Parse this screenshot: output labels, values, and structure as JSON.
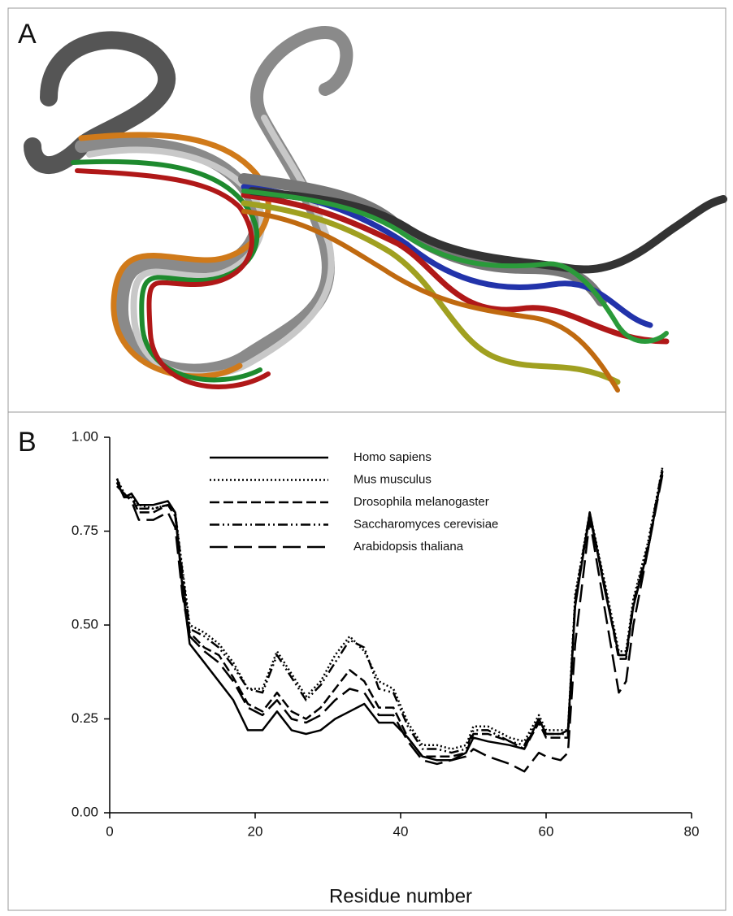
{
  "panel_a": {
    "label": "A"
  },
  "chart_data": {
    "type": "line",
    "panel_label": "B",
    "x_label": "Residue number",
    "x": [
      1,
      2,
      3,
      4,
      6,
      8,
      9,
      10,
      11,
      13,
      15,
      17,
      19,
      21,
      23,
      25,
      27,
      29,
      31,
      33,
      35,
      37,
      39,
      41,
      43,
      45,
      47,
      49,
      50,
      52,
      55,
      57,
      59,
      60,
      62,
      63,
      64,
      66,
      68,
      70,
      71,
      72,
      74,
      76
    ],
    "series": [
      {
        "name": "Homo sapiens",
        "color": "#000000",
        "dash": "solid",
        "values": [
          0.88,
          0.84,
          0.85,
          0.82,
          0.82,
          0.83,
          0.8,
          0.6,
          0.45,
          0.4,
          0.35,
          0.3,
          0.22,
          0.22,
          0.27,
          0.22,
          0.21,
          0.22,
          0.25,
          0.27,
          0.29,
          0.24,
          0.24,
          0.2,
          0.15,
          0.14,
          0.14,
          0.16,
          0.2,
          0.19,
          0.18,
          0.17,
          0.25,
          0.21,
          0.21,
          0.22,
          0.55,
          0.8,
          0.6,
          0.42,
          0.42,
          0.55,
          0.7,
          0.91
        ]
      },
      {
        "name": "Mus musculus",
        "color": "#000000",
        "dash": "dotted",
        "values": [
          0.89,
          0.85,
          0.84,
          0.82,
          0.81,
          0.82,
          0.8,
          0.65,
          0.5,
          0.48,
          0.45,
          0.4,
          0.33,
          0.33,
          0.43,
          0.37,
          0.31,
          0.35,
          0.42,
          0.47,
          0.43,
          0.35,
          0.33,
          0.24,
          0.18,
          0.18,
          0.17,
          0.18,
          0.23,
          0.23,
          0.2,
          0.19,
          0.26,
          0.22,
          0.22,
          0.22,
          0.58,
          0.8,
          0.62,
          0.43,
          0.43,
          0.57,
          0.72,
          0.92
        ]
      },
      {
        "name": "Drosophila melanogaster",
        "color": "#000000",
        "dash": "dashed",
        "values": [
          0.88,
          0.84,
          0.84,
          0.8,
          0.8,
          0.82,
          0.79,
          0.62,
          0.48,
          0.44,
          0.42,
          0.36,
          0.29,
          0.27,
          0.32,
          0.27,
          0.25,
          0.28,
          0.33,
          0.38,
          0.35,
          0.28,
          0.28,
          0.2,
          0.15,
          0.15,
          0.15,
          0.16,
          0.21,
          0.21,
          0.19,
          0.17,
          0.24,
          0.2,
          0.2,
          0.2,
          0.56,
          0.79,
          0.61,
          0.41,
          0.41,
          0.55,
          0.7,
          0.91
        ]
      },
      {
        "name": "Saccharomyces cerevisiae",
        "color": "#000000",
        "dash": "dash-dot-dot",
        "values": [
          0.89,
          0.84,
          0.85,
          0.81,
          0.81,
          0.82,
          0.8,
          0.64,
          0.49,
          0.47,
          0.44,
          0.39,
          0.33,
          0.32,
          0.42,
          0.36,
          0.3,
          0.34,
          0.4,
          0.46,
          0.44,
          0.33,
          0.32,
          0.23,
          0.17,
          0.17,
          0.16,
          0.17,
          0.22,
          0.22,
          0.19,
          0.18,
          0.25,
          0.21,
          0.21,
          0.21,
          0.57,
          0.8,
          0.61,
          0.42,
          0.42,
          0.56,
          0.71,
          0.92
        ]
      },
      {
        "name": "Arabidopsis thaliana",
        "color": "#000000",
        "dash": "long-dash",
        "values": [
          0.87,
          0.85,
          0.83,
          0.78,
          0.78,
          0.8,
          0.76,
          0.58,
          0.47,
          0.43,
          0.4,
          0.35,
          0.28,
          0.26,
          0.3,
          0.25,
          0.24,
          0.26,
          0.3,
          0.33,
          0.32,
          0.26,
          0.26,
          0.19,
          0.14,
          0.13,
          0.14,
          0.15,
          0.17,
          0.15,
          0.13,
          0.11,
          0.16,
          0.15,
          0.14,
          0.16,
          0.45,
          0.78,
          0.55,
          0.32,
          0.35,
          0.5,
          0.7,
          0.9
        ]
      }
    ],
    "xlim": [
      0,
      80
    ],
    "xticks": [
      0,
      20,
      40,
      60,
      80
    ],
    "ylim": [
      0,
      1
    ],
    "yticks": [
      {
        "value": 0,
        "label": "0.00"
      },
      {
        "value": 0.25,
        "label": "0.25"
      },
      {
        "value": 0.5,
        "label": "0.50"
      },
      {
        "value": 0.75,
        "label": "0.75"
      },
      {
        "value": 1,
        "label": "1.00"
      }
    ]
  }
}
